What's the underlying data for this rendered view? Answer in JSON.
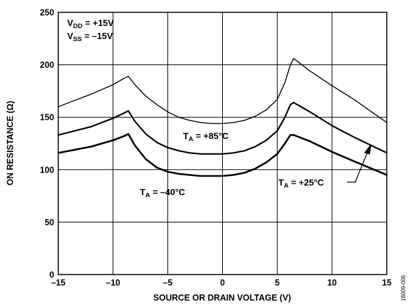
{
  "figure_id": "16009-006",
  "chart_data": {
    "type": "line",
    "title": "",
    "xlabel": "SOURCE OR DRAIN VOLTAGE (V)",
    "ylabel": "ON RESISTANCE (Ω)",
    "xlim": [
      -15,
      15
    ],
    "ylim": [
      0,
      250
    ],
    "x_ticks": [
      -15,
      -10,
      -5,
      0,
      5,
      10,
      15
    ],
    "x_tick_labels": [
      "–15",
      "–10",
      "–5",
      "0",
      "5",
      "10",
      "15"
    ],
    "y_ticks": [
      0,
      50,
      100,
      150,
      200,
      250
    ],
    "y_tick_labels": [
      "0",
      "50",
      "100",
      "150",
      "200",
      "250"
    ],
    "grid": true,
    "conditions": [
      {
        "main": "V",
        "sub": "DD",
        "rest": " = +15V"
      },
      {
        "main": "V",
        "sub": "SS",
        "rest": " = –15V"
      }
    ],
    "series": [
      {
        "label": {
          "main": "T",
          "sub": "A",
          "rest": " = +85°C"
        },
        "stroke_width": 1.4,
        "x": [
          -15,
          -12,
          -10,
          -9,
          -8.6,
          -8,
          -7,
          -6,
          -5,
          -4,
          -3,
          -2,
          -1,
          0,
          1,
          2,
          3,
          4,
          5,
          5.7,
          6.2,
          6.5,
          8,
          10,
          12,
          15
        ],
        "y": [
          160,
          172,
          181,
          187,
          189,
          181,
          170,
          162,
          155,
          150,
          147,
          145,
          144,
          144,
          145,
          147,
          151,
          157,
          167,
          183,
          200,
          206,
          194,
          180,
          167,
          145
        ]
      },
      {
        "label": {
          "main": "T",
          "sub": "A",
          "rest": " = +25°C"
        },
        "stroke_width": 2.2,
        "x": [
          -15,
          -12,
          -10,
          -9,
          -8.6,
          -8,
          -7,
          -6,
          -5,
          -4,
          -3,
          -2,
          -1,
          0,
          1,
          2,
          3,
          4,
          5,
          5.7,
          6.2,
          6.5,
          8,
          10,
          12,
          15
        ],
        "y": [
          133,
          141,
          149,
          154,
          156,
          146,
          134,
          126,
          121,
          118,
          116,
          115,
          115,
          115,
          116,
          118,
          122,
          128,
          137,
          150,
          162,
          164,
          155,
          142,
          131,
          116
        ]
      },
      {
        "label": {
          "main": "T",
          "sub": "A",
          "rest": " = –40°C"
        },
        "stroke_width": 2.6,
        "x": [
          -15,
          -12,
          -10,
          -9,
          -8.6,
          -8,
          -7,
          -6,
          -5,
          -4,
          -3,
          -2,
          -1,
          0,
          1,
          2,
          3,
          4,
          5,
          5.7,
          6.2,
          6.5,
          8,
          10,
          12,
          15
        ],
        "y": [
          116,
          122,
          128,
          132,
          134,
          123,
          110,
          102,
          98,
          96,
          95,
          94,
          94,
          94,
          95,
          97,
          101,
          107,
          115,
          125,
          133,
          133,
          127,
          117,
          108,
          95
        ]
      }
    ]
  }
}
